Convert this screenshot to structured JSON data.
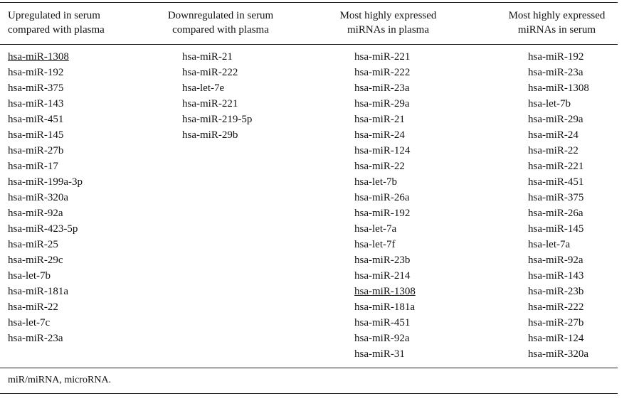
{
  "headers": {
    "col1": "Upregulated in serum\ncompared with plasma",
    "col2": "Downregulated in serum\ncompared with plasma",
    "col3": "Most highly expressed\nmiRNAs in plasma",
    "col4": "Most highly expressed\nmiRNAs in serum"
  },
  "columns": {
    "col1": [
      "hsa-miR-1308",
      "hsa-miR-192",
      "hsa-miR-375",
      "hsa-miR-143",
      "hsa-miR-451",
      "hsa-miR-145",
      "hsa-miR-27b",
      "hsa-miR-17",
      "hsa-miR-199a-3p",
      "hsa-miR-320a",
      "hsa-miR-92a",
      "hsa-miR-423-5p",
      "hsa-miR-25",
      "hsa-miR-29c",
      "hsa-let-7b",
      "hsa-miR-181a",
      "hsa-miR-22",
      "hsa-let-7c",
      "hsa-miR-23a"
    ],
    "col2": [
      "hsa-miR-21",
      "hsa-miR-222",
      "hsa-let-7e",
      "hsa-miR-221",
      "hsa-miR-219-5p",
      "hsa-miR-29b"
    ],
    "col3": [
      "hsa-miR-221",
      "hsa-miR-222",
      "hsa-miR-23a",
      "hsa-miR-29a",
      "hsa-miR-21",
      "hsa-miR-24",
      "hsa-miR-124",
      "hsa-miR-22",
      "hsa-let-7b",
      "hsa-miR-26a",
      "hsa-miR-192",
      "hsa-let-7a",
      "hsa-let-7f",
      "hsa-miR-23b",
      "hsa-miR-214",
      "hsa-miR-1308",
      "hsa-miR-181a",
      "hsa-miR-451",
      "hsa-miR-92a",
      "hsa-miR-31"
    ],
    "col4": [
      "hsa-miR-192",
      "hsa-miR-23a",
      "hsa-miR-1308",
      "hsa-let-7b",
      "hsa-miR-29a",
      "hsa-miR-24",
      "hsa-miR-22",
      "hsa-miR-221",
      "hsa-miR-451",
      "hsa-miR-375",
      "hsa-miR-26a",
      "hsa-miR-145",
      "hsa-let-7a",
      "hsa-miR-92a",
      "hsa-miR-143",
      "hsa-miR-23b",
      "hsa-miR-222",
      "hsa-miR-27b",
      "hsa-miR-124",
      "hsa-miR-320a"
    ]
  },
  "underlined": {
    "col1": [
      0
    ],
    "col3": [
      15
    ]
  },
  "footnote": "miR/miRNA, microRNA."
}
